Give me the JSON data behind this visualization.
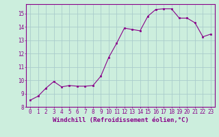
{
  "x": [
    0,
    1,
    2,
    3,
    4,
    5,
    6,
    7,
    8,
    9,
    10,
    11,
    12,
    13,
    14,
    15,
    16,
    17,
    18,
    19,
    20,
    21,
    22,
    23
  ],
  "y": [
    8.5,
    8.8,
    9.4,
    9.9,
    9.5,
    9.6,
    9.55,
    9.55,
    9.6,
    10.3,
    11.7,
    12.75,
    13.9,
    13.8,
    13.7,
    14.8,
    15.3,
    15.35,
    15.35,
    14.65,
    14.65,
    14.3,
    13.25,
    13.45
  ],
  "line_color": "#880088",
  "marker_color": "#880088",
  "bg_color": "#cceedd",
  "grid_color": "#aacccc",
  "axis_color": "#880088",
  "xlabel": "Windchill (Refroidissement éolien,°C)",
  "ylim": [
    8,
    15.7
  ],
  "xlim": [
    -0.5,
    23.5
  ],
  "yticks": [
    8,
    9,
    10,
    11,
    12,
    13,
    14,
    15
  ],
  "xticks": [
    0,
    1,
    2,
    3,
    4,
    5,
    6,
    7,
    8,
    9,
    10,
    11,
    12,
    13,
    14,
    15,
    16,
    17,
    18,
    19,
    20,
    21,
    22,
    23
  ],
  "font_color": "#880088",
  "tick_fontsize": 5.5,
  "label_fontsize": 6.5
}
